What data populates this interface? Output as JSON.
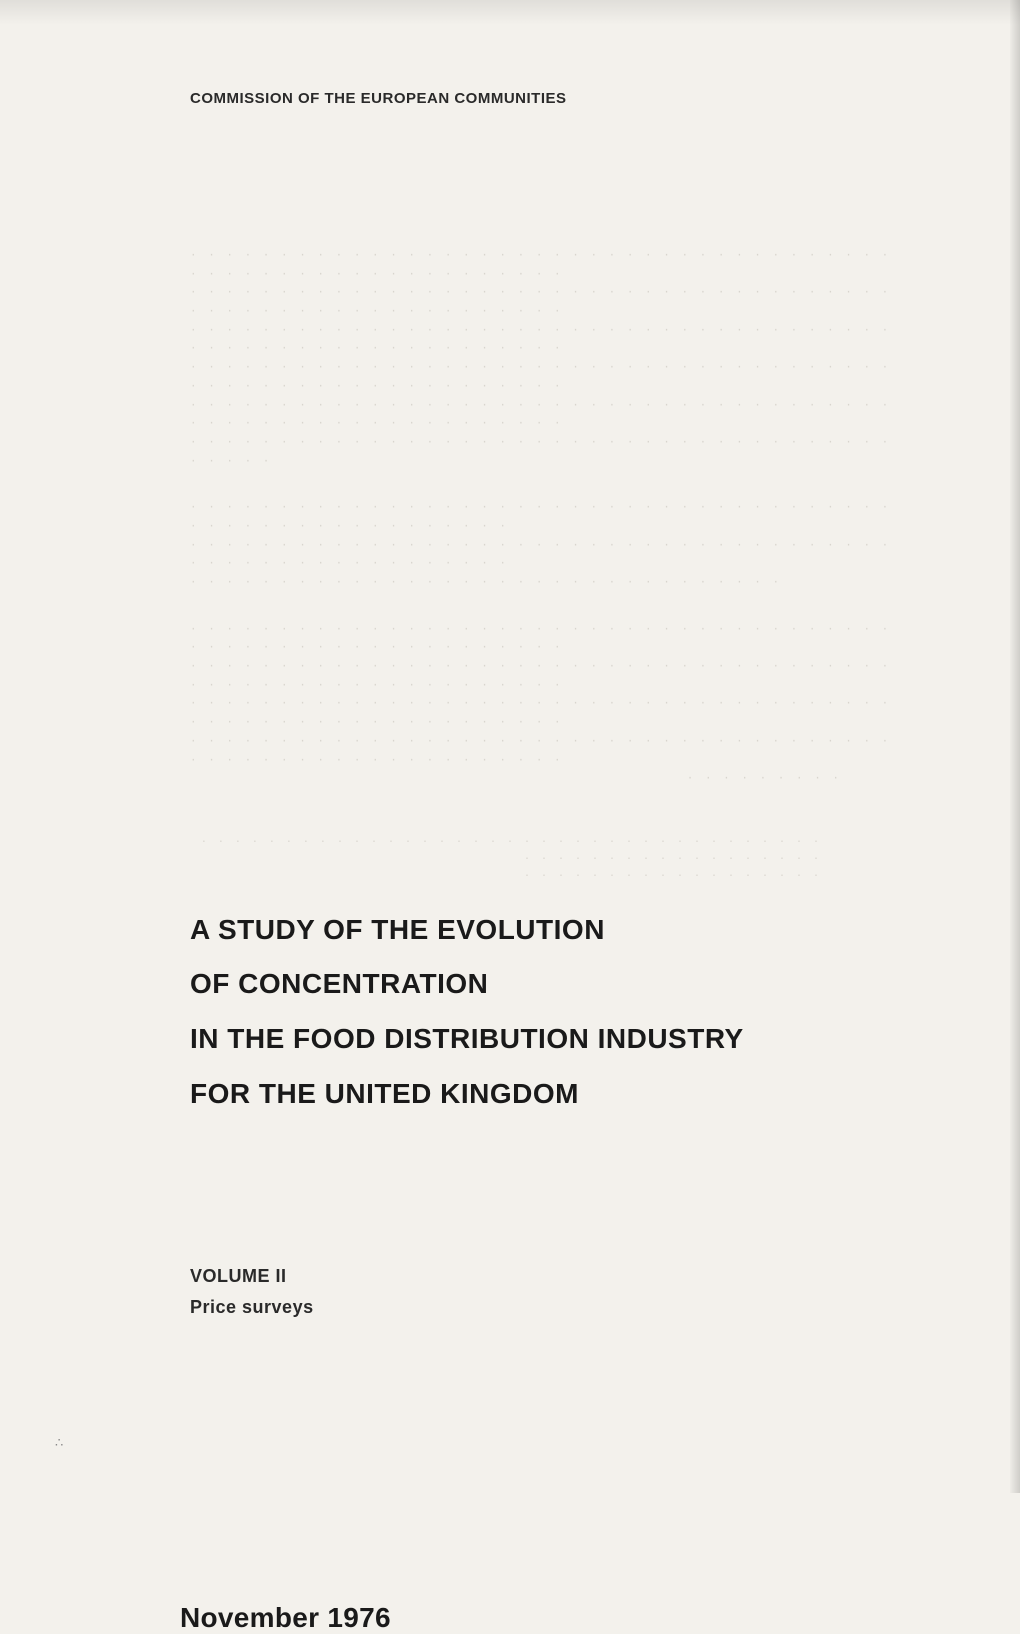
{
  "header": {
    "organization": "COMMISSION OF THE EUROPEAN COMMUNITIES"
  },
  "faded_paragraphs": {
    "block1_line1": "· · · · · · · · · · · · · · · · · · · · · · · · · · · · · · · · · · · · · · · · · · · · · · · · · · · · · · · · · · · ·",
    "block1_line2": "· · · · · · · · · · · · · · · · · · · · · · · · · · · · · · · · · · · · · · · · · · · · · · · · · · · · · · · · · · · ·",
    "block1_line3": "· · · · · · · · · · · · · · · · · · · · · · · · · · · · · · · · · · · · · · · · · · · · · · · · · · · · · · · · · · · ·",
    "block1_line4": "· · · · · · · · · · · · · · · · · · · · · · · · · · · · · · · · · · · · · · · · · · · · · · · · · · · · · · · · · · · ·",
    "block1_line5": "· · · · · · · · · · · · · · · · · · · · · · · · · · · · · · · · · · · · · · · · · · · · · · · · · · · · · · · · · · · ·",
    "block1_line6": "· · · · · · · · · · · · · · · · · · · · · · · · · · · · · · · · · · · · · · · · · · · ·",
    "block2_line1": "· · · · · · · · · · · · · · · · · · · · · · · · · · · · · · · · · · · · · · · · · · · · · · · · · · · · · · · · ·",
    "block2_line2": "· · · · · · · · · · · · · · · · · · · · · · · · · · · · · · · · · · · · · · · · · · · · · · · · · · · · · · · · ·",
    "block2_line3": "· · · · · · · · · · · · · · · · · · · · · · · · · · · · · · · · ·",
    "block3_line1": "· · · · · · · · · · · · · · · · · · · · · · · · · · · · · · · · · · · · · · · · · · · · · · · · · · · · · · · · · · · ·",
    "block3_line2": "· · · · · · · · · · · · · · · · · · · · · · · · · · · · · · · · · · · · · · · · · · · · · · · · · · · · · · · · · · · ·",
    "block3_line3": "· · · · · · · · · · · · · · · · · · · · · · · · · · · · · · · · · · · · · · · · · · · · · · · · · · · · · · · · · · · ·",
    "block3_line4": "· · · · · · · · · · · · · · · · · · · · · · · · · · · · · · · · · · · · · · · · · · · · · · · · · · · · · · · · · · · ·",
    "block3_line5": "· · · · · · · · ·",
    "block4_line1": "· · · · · · · · · · · · · · · · · · · · · · · · · · · · · · · · · · · · · · · · · · · · · · · · · · · · · · ·",
    "block4_line2": "· · · · · · · · · · · · · · · · · ·"
  },
  "title": {
    "line1": "A STUDY OF THE EVOLUTION",
    "line2": "OF CONCENTRATION",
    "line3": "IN THE FOOD DISTRIBUTION INDUSTRY",
    "line4": "FOR THE UNITED KINGDOM"
  },
  "volume": {
    "label": "VOLUME II",
    "subtitle": "Price surveys"
  },
  "date": "November 1976",
  "corner_mark": "∴",
  "styling": {
    "background_color": "#f3f1ec",
    "text_color_primary": "#1a1a1a",
    "text_color_header": "#2a2a2a",
    "text_color_faded": "#d8d5ce",
    "header_fontsize": 15,
    "title_fontsize": 28,
    "volume_fontsize": 18,
    "date_fontsize": 28,
    "faded_fontsize": 11
  }
}
